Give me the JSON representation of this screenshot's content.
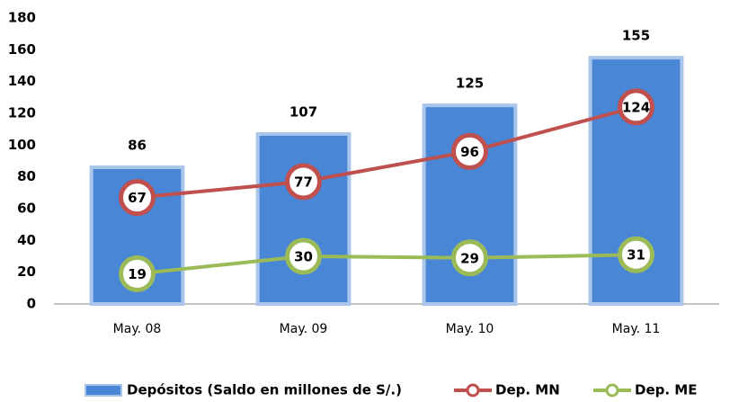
{
  "chart_data": {
    "type": "bar",
    "categories": [
      "May. 08",
      "May. 09",
      "May. 10",
      "May. 11"
    ],
    "series": [
      {
        "name": "Depósitos (Saldo en millones de S/.)",
        "type": "bar",
        "color": "#4a86d6",
        "values": [
          86,
          107,
          125,
          155
        ]
      },
      {
        "name": "Dep. MN",
        "type": "line",
        "color": "#c0504d",
        "values": [
          67,
          77,
          96,
          124
        ]
      },
      {
        "name": "Dep. ME",
        "type": "line",
        "color": "#9bbb59",
        "values": [
          19,
          30,
          29,
          31
        ]
      }
    ],
    "ylim": [
      0,
      180
    ],
    "yticks": [
      0,
      20,
      40,
      60,
      80,
      100,
      120,
      140,
      160,
      180
    ],
    "grid": false,
    "legend": "bottom"
  }
}
